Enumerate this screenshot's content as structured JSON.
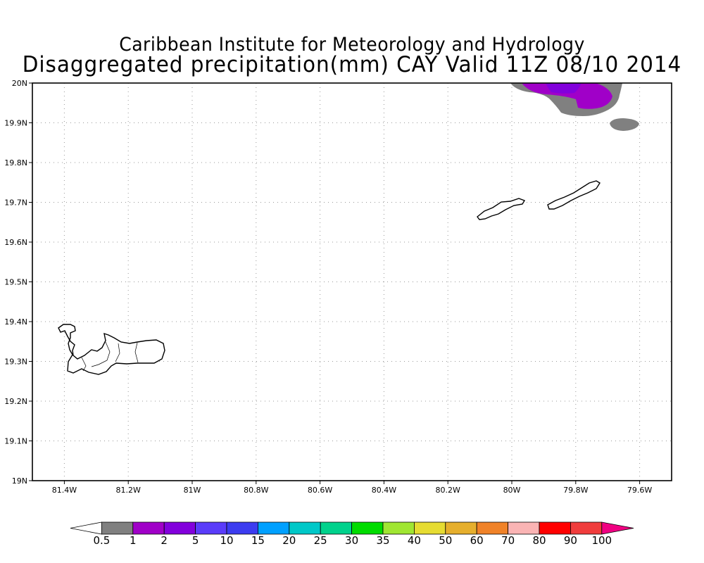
{
  "titles": {
    "line1": "Caribbean Institute for Meteorology and Hydrology",
    "line2": "Disaggregated precipitation(mm) CAY Valid 11Z 08/10 2014"
  },
  "map": {
    "lat_range": [
      19.0,
      20.0
    ],
    "lon_range": [
      -81.5,
      -79.5
    ],
    "lat_ticks": [
      {
        "value": 20.0,
        "label": "20N"
      },
      {
        "value": 19.9,
        "label": "19.9N"
      },
      {
        "value": 19.8,
        "label": "19.8N"
      },
      {
        "value": 19.7,
        "label": "19.7N"
      },
      {
        "value": 19.6,
        "label": "19.6N"
      },
      {
        "value": 19.5,
        "label": "19.5N"
      },
      {
        "value": 19.4,
        "label": "19.4N"
      },
      {
        "value": 19.3,
        "label": "19.3N"
      },
      {
        "value": 19.2,
        "label": "19.2N"
      },
      {
        "value": 19.1,
        "label": "19.1N"
      },
      {
        "value": 19.0,
        "label": "19N"
      }
    ],
    "lon_ticks": [
      {
        "value": -81.4,
        "label": "81.4W"
      },
      {
        "value": -81.2,
        "label": "81.2W"
      },
      {
        "value": -81.0,
        "label": "81W"
      },
      {
        "value": -80.8,
        "label": "80.8W"
      },
      {
        "value": -80.6,
        "label": "80.6W"
      },
      {
        "value": -80.4,
        "label": "80.4W"
      },
      {
        "value": -80.2,
        "label": "80.2W"
      },
      {
        "value": -80.0,
        "label": "80W"
      },
      {
        "value": -79.8,
        "label": "79.8W"
      },
      {
        "value": -79.6,
        "label": "79.6W"
      }
    ],
    "grid": "dotted",
    "islands": [
      "grand-cayman",
      "little-cayman",
      "cayman-brac"
    ],
    "precip_areas": [
      {
        "name": "precip-area-northeast",
        "levels_mm": [
          0.5,
          1
        ]
      },
      {
        "name": "precip-area-east",
        "levels_mm": [
          0.5
        ]
      }
    ]
  },
  "colorbar": {
    "labels": [
      "0.5",
      "1",
      "2",
      "5",
      "10",
      "15",
      "20",
      "25",
      "30",
      "35",
      "40",
      "50",
      "60",
      "70",
      "80",
      "90",
      "100"
    ],
    "colors": [
      "#ffffff",
      "#808080",
      "#a000c8",
      "#8200dc",
      "#5a3cfa",
      "#3c3cf0",
      "#00a0ff",
      "#00c8c8",
      "#00d28c",
      "#00dc00",
      "#a0e632",
      "#e6dc32",
      "#e6af2d",
      "#f08228",
      "#fab4b4",
      "#ff0000",
      "#f03c3c",
      "#f00082"
    ]
  }
}
